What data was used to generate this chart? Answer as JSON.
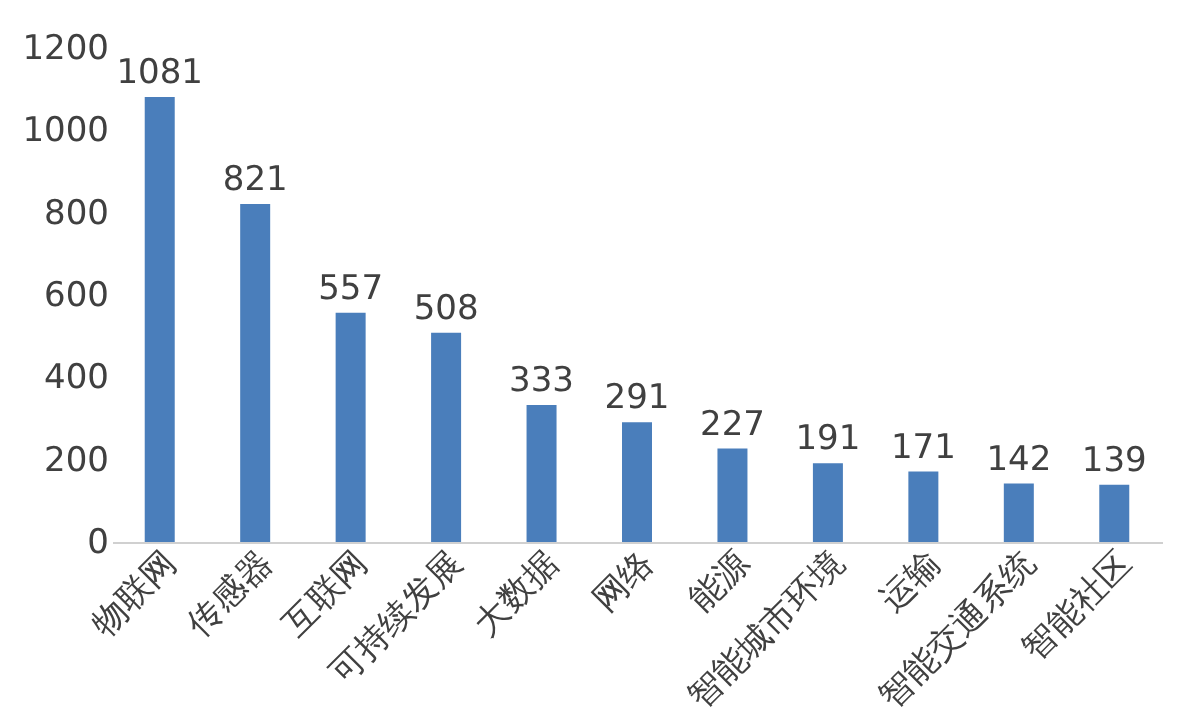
{
  "chart_data": {
    "type": "bar",
    "categories": [
      "物联网",
      "传感器",
      "互联网",
      "可持续发展",
      "大数据",
      "网络",
      "能源",
      "智能城市环境",
      "运输",
      "智能交通系统",
      "智能社区"
    ],
    "values": [
      1081,
      821,
      557,
      508,
      333,
      291,
      227,
      191,
      171,
      142,
      139
    ],
    "color": "#4a7ebb",
    "ylim": [
      0,
      1200
    ],
    "yticks": [
      0,
      200,
      400,
      600,
      800,
      1000,
      1200
    ],
    "grid": false,
    "data_labels": true
  }
}
